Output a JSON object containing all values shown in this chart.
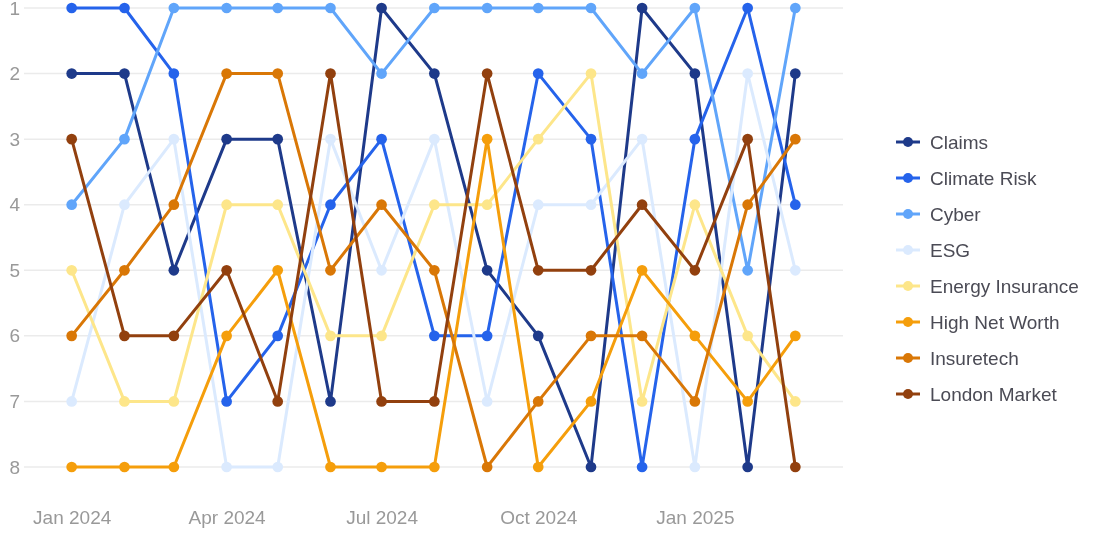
{
  "chart_data": {
    "type": "line",
    "x": [
      "2024-01",
      "2024-02",
      "2024-03",
      "2024-04",
      "2024-05",
      "2024-06",
      "2024-07",
      "2024-08",
      "2024-09",
      "2024-10",
      "2024-11",
      "2024-12",
      "2025-01",
      "2025-02",
      "2025-03"
    ],
    "series": [
      {
        "name": "Claims",
        "color": "#1e3a8a",
        "values": [
          2,
          2,
          5,
          3,
          3,
          7,
          1,
          2,
          5,
          6,
          8,
          1,
          2,
          8,
          2
        ]
      },
      {
        "name": "Climate Risk",
        "color": "#2563eb",
        "values": [
          1,
          1,
          2,
          7,
          6,
          4,
          3,
          6,
          6,
          2,
          3,
          8,
          3,
          1,
          4
        ]
      },
      {
        "name": "Cyber",
        "color": "#60a5fa",
        "values": [
          4,
          3,
          1,
          1,
          1,
          1,
          2,
          1,
          1,
          1,
          1,
          2,
          1,
          5,
          1
        ]
      },
      {
        "name": "ESG",
        "color": "#dbeafe",
        "values": [
          7,
          4,
          3,
          8,
          8,
          3,
          5,
          3,
          7,
          4,
          4,
          3,
          8,
          2,
          5
        ]
      },
      {
        "name": "Energy Insurance",
        "color": "#fde68a",
        "values": [
          5,
          7,
          7,
          4,
          4,
          6,
          6,
          4,
          4,
          3,
          2,
          7,
          4,
          6,
          7
        ]
      },
      {
        "name": "High Net Worth",
        "color": "#f59e0b",
        "values": [
          8,
          8,
          8,
          6,
          5,
          8,
          8,
          8,
          3,
          8,
          7,
          5,
          6,
          7,
          6
        ]
      },
      {
        "name": "Insuretech",
        "color": "#d97706",
        "values": [
          6,
          5,
          4,
          2,
          2,
          5,
          4,
          5,
          8,
          7,
          6,
          6,
          7,
          4,
          3
        ]
      },
      {
        "name": "London Market",
        "color": "#92400e",
        "values": [
          3,
          6,
          6,
          5,
          7,
          2,
          7,
          7,
          2,
          5,
          5,
          4,
          5,
          3,
          8
        ]
      }
    ],
    "xlim": [
      "2023-12-04",
      "2025-03-29"
    ],
    "xticks": [
      {
        "value": "2024-01",
        "label": "Jan 2024"
      },
      {
        "value": "2024-04",
        "label": "Apr 2024"
      },
      {
        "value": "2024-07",
        "label": "Jul 2024"
      },
      {
        "value": "2024-10",
        "label": "Oct 2024"
      },
      {
        "value": "2025-01",
        "label": "Jan 2025"
      }
    ],
    "ylim": [
      8,
      1
    ],
    "yticks": [
      1,
      2,
      3,
      4,
      5,
      6,
      7,
      8
    ],
    "grid": "y",
    "legend": "right",
    "marker": "circle",
    "line_style": "solid"
  }
}
